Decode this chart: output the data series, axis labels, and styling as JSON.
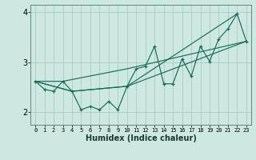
{
  "xlabel": "Humidex (Indice chaleur)",
  "bg_color": "#cde8e0",
  "grid_color": "#a0c8bc",
  "line_color": "#1a6b5a",
  "xlim": [
    -0.5,
    23.5
  ],
  "ylim": [
    1.75,
    4.15
  ],
  "yticks": [
    2,
    3,
    4
  ],
  "xticks": [
    0,
    1,
    2,
    3,
    4,
    5,
    6,
    7,
    8,
    9,
    10,
    11,
    12,
    13,
    14,
    15,
    16,
    17,
    18,
    19,
    20,
    21,
    22,
    23
  ],
  "series1_x": [
    0,
    1,
    2,
    3,
    4,
    5,
    6,
    7,
    8,
    9,
    10,
    11,
    12,
    13,
    14,
    15,
    16,
    17,
    18,
    19,
    20,
    21,
    22,
    23
  ],
  "series1_y": [
    2.62,
    2.46,
    2.42,
    2.62,
    2.42,
    2.05,
    2.12,
    2.05,
    2.22,
    2.05,
    2.52,
    2.87,
    2.92,
    3.32,
    2.57,
    2.57,
    3.07,
    2.72,
    3.32,
    3.02,
    3.47,
    3.67,
    3.97,
    3.42
  ],
  "series2_x": [
    0,
    4,
    10,
    22
  ],
  "series2_y": [
    2.62,
    2.42,
    2.52,
    3.97
  ],
  "series3_x": [
    0,
    4,
    10,
    23
  ],
  "series3_y": [
    2.62,
    2.42,
    2.52,
    3.42
  ],
  "series4_x": [
    0,
    3,
    10,
    23
  ],
  "series4_y": [
    2.62,
    2.62,
    2.87,
    3.42
  ]
}
